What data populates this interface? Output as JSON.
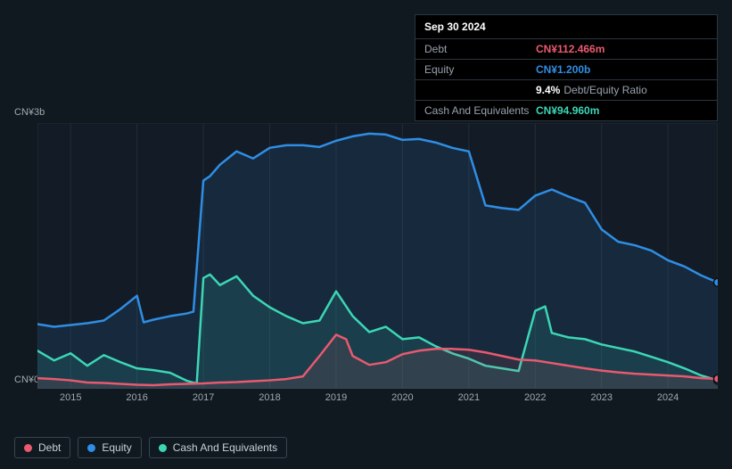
{
  "chart": {
    "type": "area",
    "background_color": "#101820",
    "plot_area_color": "#131c26",
    "plot_border_color": "#232c36",
    "y_axis": {
      "max_label": "CN¥3b",
      "min_label": "CN¥0",
      "max_value": 3000,
      "min_value": 0,
      "label_fontsize": 11,
      "label_color": "#a0a8b0"
    },
    "x_axis": {
      "ticks": [
        "2015",
        "2016",
        "2017",
        "2018",
        "2019",
        "2020",
        "2021",
        "2022",
        "2023",
        "2024"
      ],
      "label_fontsize": 11,
      "label_color": "#a0a8b0",
      "domain_start": 2014.5,
      "domain_end": 2024.75
    },
    "series": [
      {
        "name": "Equity",
        "stroke": "#2f8ee4",
        "fill": "#2f8ee4",
        "fill_opacity": 0.12,
        "stroke_width": 2.5,
        "points": [
          [
            2014.5,
            730
          ],
          [
            2014.75,
            700
          ],
          [
            2015,
            720
          ],
          [
            2015.25,
            740
          ],
          [
            2015.5,
            770
          ],
          [
            2015.75,
            900
          ],
          [
            2016,
            1050
          ],
          [
            2016.1,
            750
          ],
          [
            2016.25,
            780
          ],
          [
            2016.5,
            820
          ],
          [
            2016.75,
            850
          ],
          [
            2016.85,
            870
          ],
          [
            2017,
            2350
          ],
          [
            2017.1,
            2400
          ],
          [
            2017.25,
            2530
          ],
          [
            2017.5,
            2680
          ],
          [
            2017.75,
            2600
          ],
          [
            2018,
            2720
          ],
          [
            2018.25,
            2750
          ],
          [
            2018.5,
            2750
          ],
          [
            2018.75,
            2730
          ],
          [
            2019,
            2800
          ],
          [
            2019.25,
            2850
          ],
          [
            2019.5,
            2880
          ],
          [
            2019.75,
            2870
          ],
          [
            2020,
            2810
          ],
          [
            2020.25,
            2820
          ],
          [
            2020.5,
            2780
          ],
          [
            2020.75,
            2720
          ],
          [
            2021,
            2680
          ],
          [
            2021.25,
            2070
          ],
          [
            2021.5,
            2040
          ],
          [
            2021.75,
            2020
          ],
          [
            2022,
            2180
          ],
          [
            2022.25,
            2250
          ],
          [
            2022.5,
            2170
          ],
          [
            2022.75,
            2100
          ],
          [
            2023,
            1800
          ],
          [
            2023.25,
            1660
          ],
          [
            2023.5,
            1620
          ],
          [
            2023.75,
            1560
          ],
          [
            2024,
            1450
          ],
          [
            2024.25,
            1380
          ],
          [
            2024.5,
            1280
          ],
          [
            2024.75,
            1200
          ]
        ]
      },
      {
        "name": "Cash And Equivalents",
        "stroke": "#3cd6b5",
        "fill": "#3cd6b5",
        "fill_opacity": 0.12,
        "stroke_width": 2.5,
        "points": [
          [
            2014.5,
            430
          ],
          [
            2014.75,
            320
          ],
          [
            2015,
            400
          ],
          [
            2015.25,
            260
          ],
          [
            2015.5,
            380
          ],
          [
            2015.75,
            300
          ],
          [
            2016,
            230
          ],
          [
            2016.25,
            210
          ],
          [
            2016.5,
            180
          ],
          [
            2016.75,
            90
          ],
          [
            2016.9,
            60
          ],
          [
            2017,
            1250
          ],
          [
            2017.1,
            1290
          ],
          [
            2017.25,
            1170
          ],
          [
            2017.5,
            1270
          ],
          [
            2017.75,
            1050
          ],
          [
            2018,
            920
          ],
          [
            2018.25,
            820
          ],
          [
            2018.5,
            740
          ],
          [
            2018.75,
            770
          ],
          [
            2019,
            1100
          ],
          [
            2019.25,
            820
          ],
          [
            2019.5,
            640
          ],
          [
            2019.75,
            700
          ],
          [
            2020,
            560
          ],
          [
            2020.25,
            580
          ],
          [
            2020.5,
            480
          ],
          [
            2020.75,
            400
          ],
          [
            2021,
            340
          ],
          [
            2021.25,
            260
          ],
          [
            2021.5,
            230
          ],
          [
            2021.75,
            200
          ],
          [
            2022,
            880
          ],
          [
            2022.15,
            930
          ],
          [
            2022.25,
            630
          ],
          [
            2022.5,
            580
          ],
          [
            2022.75,
            560
          ],
          [
            2023,
            500
          ],
          [
            2023.25,
            460
          ],
          [
            2023.5,
            420
          ],
          [
            2023.75,
            360
          ],
          [
            2024,
            300
          ],
          [
            2024.25,
            230
          ],
          [
            2024.5,
            150
          ],
          [
            2024.75,
            95
          ]
        ]
      },
      {
        "name": "Debt",
        "stroke": "#e85a6f",
        "fill": "#e85a6f",
        "fill_opacity": 0.12,
        "stroke_width": 2.5,
        "points": [
          [
            2014.5,
            120
          ],
          [
            2014.75,
            110
          ],
          [
            2015,
            95
          ],
          [
            2015.25,
            70
          ],
          [
            2015.5,
            65
          ],
          [
            2015.75,
            55
          ],
          [
            2016,
            45
          ],
          [
            2016.25,
            40
          ],
          [
            2016.5,
            50
          ],
          [
            2016.75,
            55
          ],
          [
            2017,
            60
          ],
          [
            2017.25,
            70
          ],
          [
            2017.5,
            75
          ],
          [
            2017.75,
            85
          ],
          [
            2018,
            95
          ],
          [
            2018.25,
            110
          ],
          [
            2018.5,
            140
          ],
          [
            2018.75,
            370
          ],
          [
            2019,
            610
          ],
          [
            2019.15,
            560
          ],
          [
            2019.25,
            370
          ],
          [
            2019.5,
            270
          ],
          [
            2019.75,
            300
          ],
          [
            2020,
            390
          ],
          [
            2020.25,
            430
          ],
          [
            2020.5,
            450
          ],
          [
            2020.75,
            450
          ],
          [
            2021,
            440
          ],
          [
            2021.25,
            410
          ],
          [
            2021.5,
            370
          ],
          [
            2021.75,
            330
          ],
          [
            2022,
            320
          ],
          [
            2022.25,
            290
          ],
          [
            2022.5,
            260
          ],
          [
            2022.75,
            230
          ],
          [
            2023,
            205
          ],
          [
            2023.25,
            185
          ],
          [
            2023.5,
            170
          ],
          [
            2023.75,
            160
          ],
          [
            2024,
            150
          ],
          [
            2024.25,
            140
          ],
          [
            2024.5,
            120
          ],
          [
            2024.75,
            112
          ]
        ]
      }
    ],
    "end_marker_color": "#ffffff",
    "end_marker_stroke": "#3a4550"
  },
  "tooltip": {
    "date": "Sep 30 2024",
    "rows": [
      {
        "label": "Debt",
        "value": "CN¥112.466m",
        "color": "#e85a6f"
      },
      {
        "label": "Equity",
        "value": "CN¥1.200b",
        "color": "#2f8ee4"
      },
      {
        "label": "",
        "value": "9.4%",
        "color": "#ffffff",
        "extra": "Debt/Equity Ratio"
      },
      {
        "label": "Cash And Equivalents",
        "value": "CN¥94.960m",
        "color": "#3cd6b5"
      }
    ],
    "background": "#000000",
    "border_color": "#2a3540",
    "header_color": "#ffffff",
    "label_color": "#98a2ad",
    "fontsize": 12
  },
  "legend": {
    "items": [
      {
        "label": "Debt",
        "color": "#e85a6f"
      },
      {
        "label": "Equity",
        "color": "#2f8ee4"
      },
      {
        "label": "Cash And Equivalents",
        "color": "#3cd6b5"
      }
    ],
    "border_color": "#3a4550",
    "text_color": "#c8d0d8",
    "fontsize": 12
  }
}
